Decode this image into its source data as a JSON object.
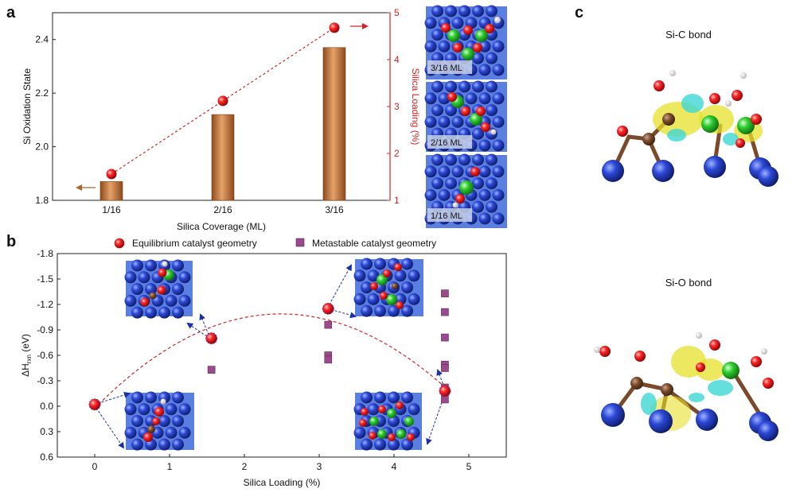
{
  "panel_labels": {
    "a": "a",
    "b": "b",
    "c": "c"
  },
  "colors": {
    "bar": "#c8763a",
    "red_marker": "#e01e1e",
    "purple_marker": "#9b4a8c",
    "dashed_line": "#d42424",
    "arrow_blue": "#1a2fa8",
    "arrow_brown": "#b4642a"
  },
  "chart_data": [
    {
      "panel": "a",
      "type": "bar",
      "categories": [
        "1/16",
        "2/16",
        "3/16"
      ],
      "xlabel": "Silica Coverage (ML)",
      "series": [
        {
          "name": "Si Oxidation State",
          "axis": "left",
          "type": "bar",
          "values": [
            1.87,
            2.12,
            2.37
          ]
        },
        {
          "name": "Silica Loading (%)",
          "axis": "right",
          "type": "line-dashed-markers",
          "values": [
            1.56,
            3.12,
            4.68
          ]
        }
      ],
      "left_axis": {
        "label": "Si Oxidation State",
        "ylim": [
          1.8,
          2.5
        ],
        "ticks": [
          "1.8",
          "2.0",
          "2.2",
          "2.4"
        ],
        "tick_values": [
          1.8,
          2.0,
          2.2,
          2.4
        ]
      },
      "right_axis": {
        "label": "Silica Loading (%)",
        "ylim": [
          1,
          5
        ],
        "ticks": [
          "1",
          "2",
          "3",
          "4",
          "5"
        ],
        "tick_values": [
          1,
          2,
          3,
          4,
          5
        ]
      },
      "insets": [
        {
          "label": "3/16 ML",
          "icon": "surface-model-3-16"
        },
        {
          "label": "2/16 ML",
          "icon": "surface-model-2-16"
        },
        {
          "label": "1/16 ML",
          "icon": "surface-model-1-16"
        }
      ]
    },
    {
      "panel": "b",
      "type": "scatter",
      "xlabel": "Silica Loading (%)",
      "ylabel_main": "ΔH",
      "ylabel_sub": "rxn",
      "ylabel_unit": " (eV)",
      "xlim": [
        -0.5,
        5.5
      ],
      "ylim": [
        0.6,
        -1.8
      ],
      "y_inverted": true,
      "xticks": [
        "0",
        "1",
        "2",
        "3",
        "4",
        "5"
      ],
      "xtick_values": [
        0,
        1,
        2,
        3,
        4,
        5
      ],
      "yticks": [
        "-1.8",
        "-1.5",
        "-1.2",
        "-0.9",
        "-0.6",
        "-0.3",
        "0.0",
        "0.3",
        "0.6"
      ],
      "ytick_values": [
        -1.8,
        -1.5,
        -1.2,
        -0.9,
        -0.6,
        -0.3,
        0.0,
        0.3,
        0.6
      ],
      "legend": [
        "Equilibrium catalyst geometry",
        "Metastable catalyst geometry"
      ],
      "series": [
        {
          "name": "Equilibrium catalyst geometry",
          "marker": "red-sphere",
          "x": [
            0,
            1.56,
            3.12,
            4.68
          ],
          "y": [
            -0.02,
            -0.8,
            -1.15,
            -0.18
          ]
        },
        {
          "name": "Metastable catalyst geometry",
          "marker": "purple-square",
          "x": [
            1.56,
            3.12,
            3.12,
            3.12,
            4.68,
            4.68,
            4.68,
            4.68,
            4.68,
            4.68,
            4.68,
            4.68
          ],
          "y": [
            -0.43,
            -0.96,
            -0.6,
            -0.55,
            -1.33,
            -1.11,
            -0.81,
            -0.49,
            -0.45,
            -0.22,
            -0.17,
            -0.08
          ]
        }
      ],
      "fit_curve": {
        "style": "dashed",
        "color": "#d42424"
      }
    }
  ],
  "panel_c": {
    "titles": [
      "Si-C bond",
      "Si-O bond"
    ]
  }
}
